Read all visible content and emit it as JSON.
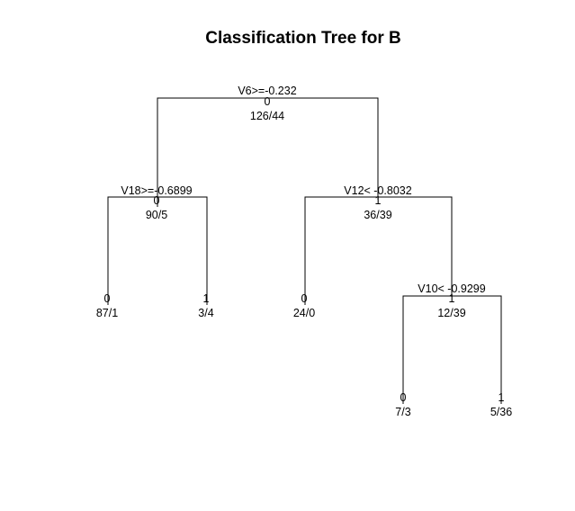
{
  "title": "Classification Tree for B",
  "nodes": {
    "root": {
      "split": "V6>=-0.232",
      "class": "0",
      "counts": "126/44"
    },
    "n2": {
      "split": "V18>=-0.6899",
      "class": "0",
      "counts": "90/5"
    },
    "n3": {
      "split": "V12< -0.8032",
      "class": "1",
      "counts": "36/39"
    },
    "n4": {
      "class": "0",
      "counts": "87/1"
    },
    "n5": {
      "class": "1",
      "counts": "3/4"
    },
    "n6": {
      "class": "0",
      "counts": "24/0"
    },
    "n7": {
      "split": "V10< -0.9299",
      "class": "1",
      "counts": "12/39"
    },
    "n14": {
      "class": "0",
      "counts": "7/3"
    },
    "n15": {
      "class": "1",
      "counts": "5/36"
    }
  }
}
